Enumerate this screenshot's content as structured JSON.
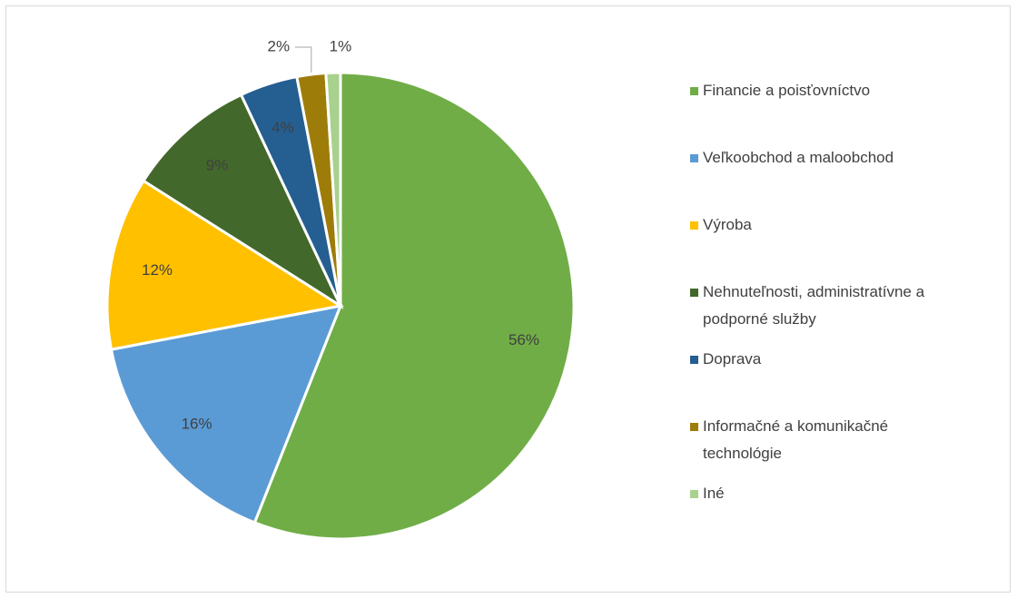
{
  "chart_data": {
    "type": "pie",
    "categories": [
      "Financie a poisťovníctvo",
      "Veľkoobchod a maloobchod",
      "Výroba",
      "Nehnuteľnosti, administratívne a podporné služby",
      "Doprava",
      "Informačné a komunikačné technológie",
      "Iné"
    ],
    "values": [
      56,
      16,
      12,
      9,
      4,
      2,
      1
    ],
    "value_labels": [
      "56%",
      "16%",
      "12%",
      "9%",
      "4%",
      "2%",
      "1%"
    ],
    "colors": [
      "#70ad47",
      "#5b9bd5",
      "#ffc000",
      "#43682b",
      "#255e91",
      "#9e7c0a",
      "#a9d18e"
    ],
    "legend": "right"
  }
}
